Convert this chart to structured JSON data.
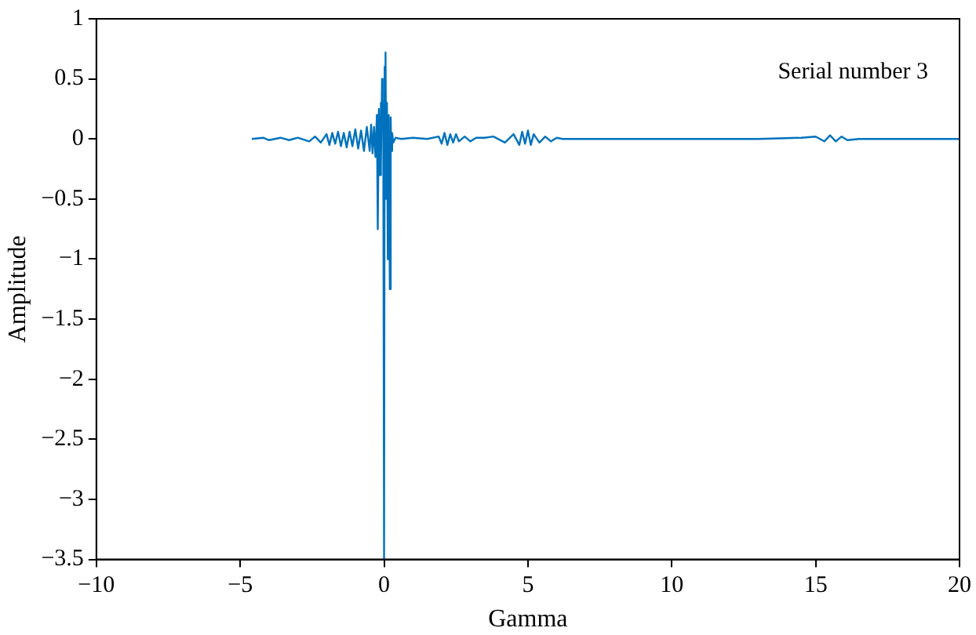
{
  "chart_data": {
    "type": "line",
    "xlabel": "Gamma",
    "ylabel": "Amplitude",
    "annotations": [
      "Serial number 3"
    ],
    "xlim": [
      -10,
      20
    ],
    "xticks": [
      -10,
      -5,
      0,
      5,
      10,
      15,
      20
    ],
    "ylim": [
      -3.5,
      1
    ],
    "yticks": [
      1,
      0.5,
      0,
      -0.5,
      -1,
      -1.5,
      -2,
      -2.5,
      -3,
      -3.5
    ],
    "grid": false,
    "legend": false,
    "marker": "none",
    "line_style": "solid",
    "series": [
      {
        "color": "#0072bd",
        "x": [
          -4.6,
          -4.2,
          -4.0,
          -3.6,
          -3.3,
          -3.0,
          -2.6,
          -2.4,
          -2.2,
          -2.0,
          -1.9,
          -1.8,
          -1.7,
          -1.6,
          -1.5,
          -1.4,
          -1.3,
          -1.2,
          -1.1,
          -1.0,
          -0.9,
          -0.8,
          -0.7,
          -0.6,
          -0.5,
          -0.45,
          -0.4,
          -0.35,
          -0.3,
          -0.25,
          -0.22,
          -0.18,
          -0.15,
          -0.12,
          -0.1,
          -0.07,
          -0.05,
          -0.03,
          0.0,
          0.02,
          0.05,
          0.08,
          0.1,
          0.13,
          0.16,
          0.2,
          0.23,
          0.25,
          0.28,
          0.32,
          0.4,
          0.6,
          1.0,
          1.5,
          1.9,
          2.0,
          2.1,
          2.2,
          2.3,
          2.4,
          2.5,
          2.6,
          2.8,
          3.0,
          3.2,
          3.5,
          3.8,
          4.2,
          4.5,
          4.7,
          4.8,
          4.9,
          5.0,
          5.1,
          5.2,
          5.4,
          5.6,
          5.8,
          6.0,
          6.2,
          6.6,
          7.5,
          9,
          11,
          13,
          14.5,
          15.0,
          15.3,
          15.5,
          15.7,
          15.9,
          16.1,
          16.5,
          17.5,
          19,
          20
        ],
        "values": [
          0,
          0.01,
          -0.01,
          0.01,
          -0.01,
          0.01,
          -0.02,
          0.02,
          -0.03,
          0.04,
          -0.05,
          0.05,
          -0.04,
          0.06,
          -0.06,
          0.05,
          -0.07,
          0.06,
          -0.06,
          0.08,
          -0.08,
          0.07,
          -0.1,
          0.1,
          -0.1,
          0.12,
          -0.12,
          0.1,
          -0.15,
          0.2,
          -0.75,
          0.25,
          -0.3,
          0.3,
          -0.2,
          0.5,
          0.1,
          0.3,
          -3.5,
          0.6,
          0.72,
          -0.5,
          0.3,
          -1.0,
          0.2,
          -1.25,
          0.18,
          -0.1,
          0.05,
          -0.03,
          0.01,
          0.0,
          0.01,
          0.0,
          0.02,
          -0.04,
          0.05,
          -0.05,
          0.04,
          -0.03,
          0.04,
          -0.02,
          0.02,
          -0.02,
          0.01,
          0.01,
          0.02,
          -0.03,
          0.04,
          -0.05,
          0.06,
          -0.04,
          0.07,
          -0.05,
          0.04,
          -0.03,
          0.02,
          -0.02,
          0.01,
          0,
          0,
          0,
          0,
          0,
          0,
          0.01,
          0.02,
          -0.02,
          0.03,
          -0.02,
          0.02,
          -0.01,
          0,
          0,
          0,
          0
        ]
      }
    ]
  }
}
